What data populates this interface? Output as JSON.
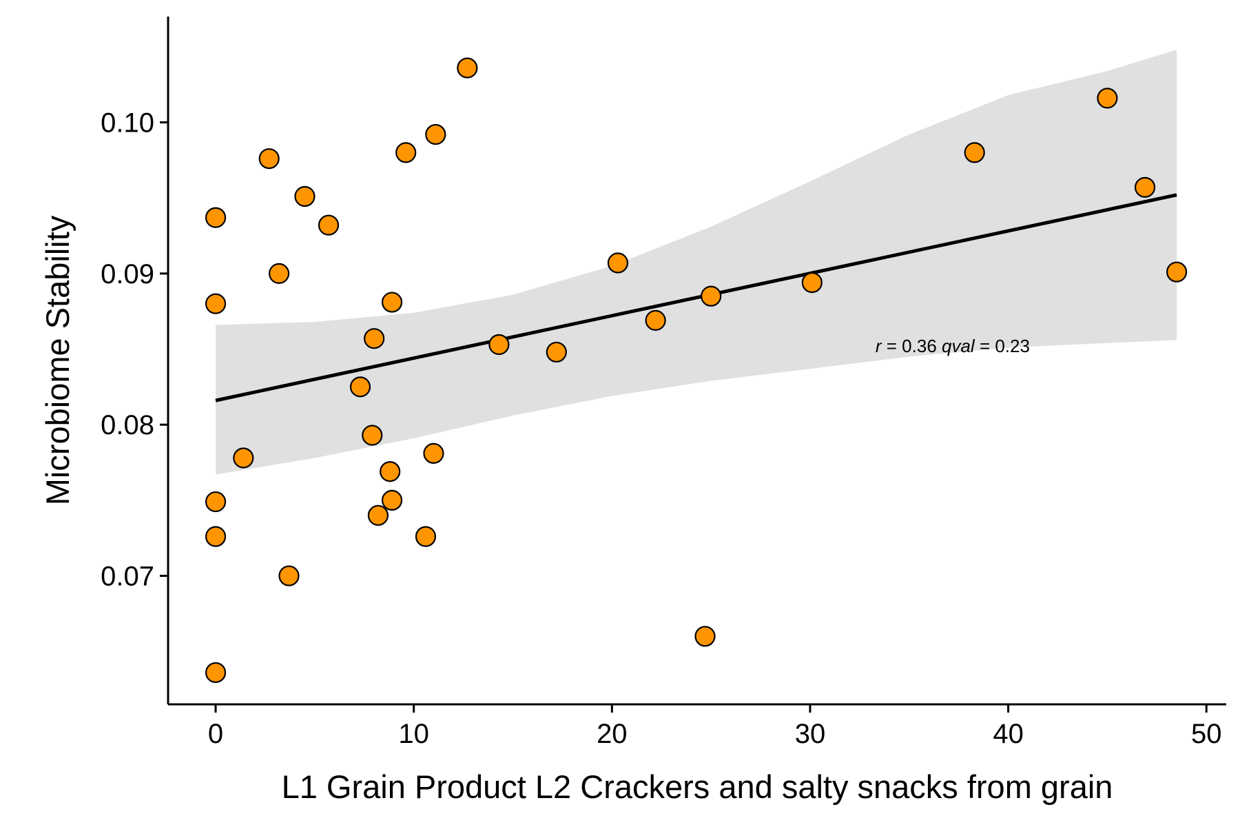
{
  "chart_data": {
    "type": "scatter",
    "xlabel": "L1 Grain Product  L2 Crackers and salty snacks from grain",
    "ylabel": "Microbiome Stability",
    "xlim": [
      -2.4,
      51
    ],
    "ylim": [
      0.0615,
      0.107
    ],
    "x_ticks": [
      0,
      10,
      20,
      30,
      40,
      50
    ],
    "y_ticks": [
      0.07,
      0.08,
      0.09,
      0.1
    ],
    "x_tick_labels": [
      "0",
      "10",
      "20",
      "30",
      "40",
      "50"
    ],
    "y_tick_labels": [
      "0.07",
      "0.08",
      "0.09",
      "0.10"
    ],
    "grid": false,
    "points": [
      {
        "x": 0.0,
        "y": 0.0937
      },
      {
        "x": 0.0,
        "y": 0.088
      },
      {
        "x": 0.0,
        "y": 0.0749
      },
      {
        "x": 0.0,
        "y": 0.0726
      },
      {
        "x": 0.0,
        "y": 0.0636
      },
      {
        "x": 1.4,
        "y": 0.0778
      },
      {
        "x": 2.7,
        "y": 0.0976
      },
      {
        "x": 3.2,
        "y": 0.09
      },
      {
        "x": 3.7,
        "y": 0.07
      },
      {
        "x": 4.5,
        "y": 0.0951
      },
      {
        "x": 5.7,
        "y": 0.0932
      },
      {
        "x": 7.3,
        "y": 0.0825
      },
      {
        "x": 7.9,
        "y": 0.0793
      },
      {
        "x": 8.0,
        "y": 0.0857
      },
      {
        "x": 8.2,
        "y": 0.074
      },
      {
        "x": 8.8,
        "y": 0.0769
      },
      {
        "x": 8.9,
        "y": 0.075
      },
      {
        "x": 8.9,
        "y": 0.0881
      },
      {
        "x": 9.6,
        "y": 0.098
      },
      {
        "x": 10.6,
        "y": 0.0726
      },
      {
        "x": 11.0,
        "y": 0.0781
      },
      {
        "x": 11.1,
        "y": 0.0992
      },
      {
        "x": 12.7,
        "y": 0.1036
      },
      {
        "x": 14.3,
        "y": 0.0853
      },
      {
        "x": 17.2,
        "y": 0.0848
      },
      {
        "x": 20.3,
        "y": 0.0907
      },
      {
        "x": 22.2,
        "y": 0.0869
      },
      {
        "x": 24.7,
        "y": 0.066
      },
      {
        "x": 25.0,
        "y": 0.0885
      },
      {
        "x": 30.1,
        "y": 0.0894
      },
      {
        "x": 38.3,
        "y": 0.098
      },
      {
        "x": 45.0,
        "y": 0.1016
      },
      {
        "x": 46.9,
        "y": 0.0957
      },
      {
        "x": 48.5,
        "y": 0.0901
      }
    ],
    "fit_line": {
      "x": [
        0,
        48.5
      ],
      "y": [
        0.0816,
        0.0952
      ]
    },
    "confidence_band": {
      "x": [
        0,
        5,
        10,
        15,
        20,
        25,
        30,
        35,
        40,
        45,
        48.5
      ],
      "upper": [
        0.0866,
        0.0868,
        0.0874,
        0.0886,
        0.0905,
        0.0931,
        0.0961,
        0.0992,
        0.1018,
        0.1034,
        0.1048
      ],
      "lower": [
        0.0767,
        0.0778,
        0.0791,
        0.0806,
        0.0819,
        0.0829,
        0.0837,
        0.0845,
        0.0851,
        0.0854,
        0.0856
      ]
    },
    "annotation": {
      "x": 33.3,
      "y": 0.0852,
      "r_symbol": "r",
      "r_text": " = 0.36 ",
      "q_symbol": "qval",
      "q_text": " = 0.23"
    },
    "colors": {
      "point_fill": "#FF9500",
      "point_stroke": "#000000",
      "fit_line": "#000000",
      "band": "#E0E0E0"
    }
  }
}
